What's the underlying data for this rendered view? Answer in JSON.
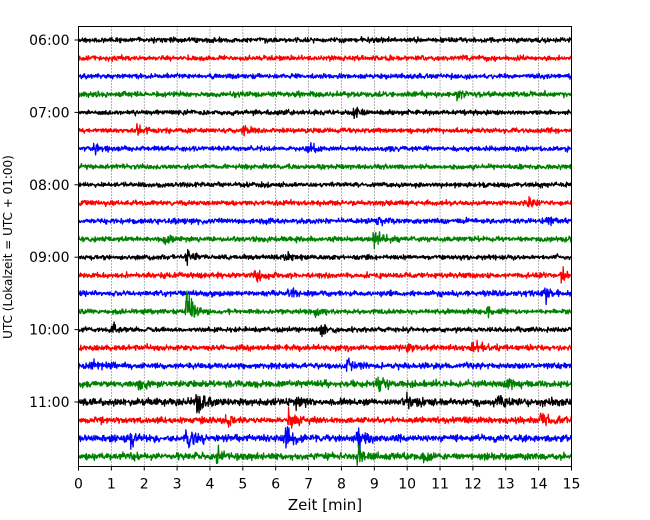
{
  "chart_data": {
    "type": "line",
    "title": "",
    "xlabel": "Zeit  [min]",
    "ylabel": "UTC (Lokalzeit = UTC + 01:00)",
    "xlim": [
      0,
      15
    ],
    "x_ticks": [
      0,
      1,
      2,
      3,
      4,
      5,
      6,
      7,
      8,
      9,
      10,
      11,
      12,
      13,
      14,
      15
    ],
    "grid": "vertical dotted",
    "y_tick_labels": [
      "06:00",
      "07:00",
      "08:00",
      "09:00",
      "10:00",
      "11:00"
    ],
    "trace_colors": [
      "#000000",
      "#ff0000",
      "#0000ff",
      "#008000"
    ],
    "traces": [
      {
        "start": "06:00",
        "amplitude": 1.0,
        "events": []
      },
      {
        "start": "06:15",
        "amplitude": 1.0,
        "events": []
      },
      {
        "start": "06:30",
        "amplitude": 1.0,
        "events": []
      },
      {
        "start": "06:45",
        "amplitude": 1.1,
        "events": [
          {
            "t": 11.5,
            "amp": 2
          }
        ]
      },
      {
        "start": "07:00",
        "amplitude": 1.0,
        "events": [
          {
            "t": 8.4,
            "amp": 2
          }
        ]
      },
      {
        "start": "07:15",
        "amplitude": 1.0,
        "events": [
          {
            "t": 1.8,
            "amp": 2
          },
          {
            "t": 5.0,
            "amp": 2
          }
        ]
      },
      {
        "start": "07:30",
        "amplitude": 1.0,
        "events": [
          {
            "t": 0.5,
            "amp": 2
          },
          {
            "t": 7.0,
            "amp": 2
          }
        ]
      },
      {
        "start": "07:45",
        "amplitude": 1.0,
        "events": []
      },
      {
        "start": "08:00",
        "amplitude": 1.0,
        "events": []
      },
      {
        "start": "08:15",
        "amplitude": 1.0,
        "events": [
          {
            "t": 13.7,
            "amp": 2
          }
        ]
      },
      {
        "start": "08:30",
        "amplitude": 1.1,
        "events": [
          {
            "t": 9.1,
            "amp": 2
          },
          {
            "t": 14.3,
            "amp": 2.5
          }
        ]
      },
      {
        "start": "08:45",
        "amplitude": 1.1,
        "events": [
          {
            "t": 9.0,
            "amp": 4
          },
          {
            "t": 2.6,
            "amp": 2
          }
        ]
      },
      {
        "start": "09:00",
        "amplitude": 1.0,
        "events": [
          {
            "t": 3.3,
            "amp": 2.5
          },
          {
            "t": 6.3,
            "amp": 2
          }
        ]
      },
      {
        "start": "09:15",
        "amplitude": 1.1,
        "events": [
          {
            "t": 5.4,
            "amp": 2.5
          },
          {
            "t": 14.7,
            "amp": 2
          }
        ]
      },
      {
        "start": "09:30",
        "amplitude": 1.1,
        "events": [
          {
            "t": 6.4,
            "amp": 2
          },
          {
            "t": 14.2,
            "amp": 2.5
          }
        ]
      },
      {
        "start": "09:45",
        "amplitude": 1.0,
        "events": [
          {
            "t": 3.3,
            "amp": 8
          },
          {
            "t": 7.2,
            "amp": 2
          },
          {
            "t": 12.5,
            "amp": 2
          }
        ]
      },
      {
        "start": "10:00",
        "amplitude": 1.0,
        "events": [
          {
            "t": 1.0,
            "amp": 2
          },
          {
            "t": 7.4,
            "amp": 2
          }
        ]
      },
      {
        "start": "10:15",
        "amplitude": 1.2,
        "events": [
          {
            "t": 12.0,
            "amp": 3
          },
          {
            "t": 10.0,
            "amp": 2
          }
        ]
      },
      {
        "start": "10:30",
        "amplitude": 1.2,
        "events": [
          {
            "t": 8.2,
            "amp": 2.5
          },
          {
            "t": 0.4,
            "amp": 2
          }
        ]
      },
      {
        "start": "10:45",
        "amplitude": 1.4,
        "events": [
          {
            "t": 9.1,
            "amp": 3
          },
          {
            "t": 1.8,
            "amp": 2.5
          },
          {
            "t": 13.0,
            "amp": 2.5
          }
        ]
      },
      {
        "start": "11:00",
        "amplitude": 1.5,
        "events": [
          {
            "t": 3.6,
            "amp": 6
          },
          {
            "t": 10.0,
            "amp": 3
          },
          {
            "t": 12.8,
            "amp": 3
          },
          {
            "t": 6.6,
            "amp": 3
          }
        ]
      },
      {
        "start": "11:15",
        "amplitude": 1.3,
        "events": [
          {
            "t": 6.4,
            "amp": 5
          },
          {
            "t": 4.5,
            "amp": 2.5
          },
          {
            "t": 14.1,
            "amp": 2.5
          }
        ]
      },
      {
        "start": "11:30",
        "amplitude": 1.4,
        "events": [
          {
            "t": 3.3,
            "amp": 6
          },
          {
            "t": 6.3,
            "amp": 5
          },
          {
            "t": 8.5,
            "amp": 4
          },
          {
            "t": 1.6,
            "amp": 2.5
          }
        ]
      },
      {
        "start": "11:45",
        "amplitude": 1.4,
        "events": [
          {
            "t": 8.5,
            "amp": 5
          },
          {
            "t": 4.2,
            "amp": 3
          },
          {
            "t": 10.5,
            "amp": 2.5
          }
        ]
      }
    ]
  }
}
